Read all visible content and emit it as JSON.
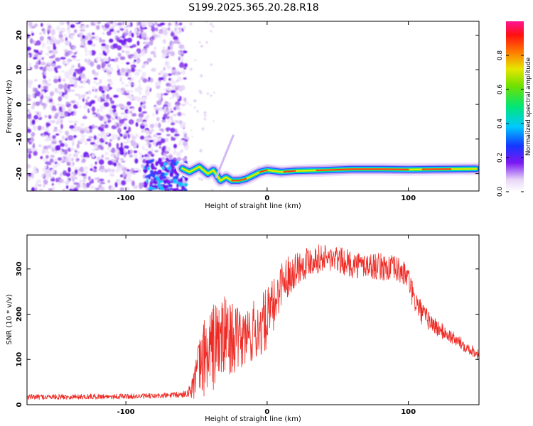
{
  "title": "S199.2025.365.20.28.R18",
  "chart_data": [
    {
      "type": "heatmap",
      "title": "S199.2025.365.20.28.R18",
      "xlabel": "Height of straight line (km)",
      "ylabel": "Frequency (Hz)",
      "xlim": [
        -170,
        150
      ],
      "ylim": [
        -25,
        24
      ],
      "xticks": [
        -100,
        0,
        100
      ],
      "xtick_labels": [
        "-100",
        "0",
        "100"
      ],
      "yticks": [
        -20,
        -10,
        0,
        10,
        20
      ],
      "ytick_labels": [
        "-20",
        "-10",
        "0",
        "10",
        "20"
      ],
      "noise_region_x": [
        -170,
        -57
      ],
      "signal_track": {
        "x": [
          -60,
          -55,
          -48,
          -42,
          -38,
          -33,
          -29,
          -25,
          -20,
          -15,
          -10,
          -5,
          0,
          10,
          20,
          40,
          60,
          80,
          100,
          120,
          148
        ],
        "y": [
          -18.5,
          -19.5,
          -18,
          -20,
          -19,
          -22,
          -21,
          -22,
          -22,
          -21.5,
          -20.5,
          -19.5,
          -19,
          -19.5,
          -19.2,
          -19,
          -18.7,
          -18.7,
          -18.8,
          -18.7,
          -18.6
        ]
      },
      "colorbar": {
        "label": "Normalized spectral amplitude",
        "range": [
          0,
          1
        ],
        "ticks": [
          0.0,
          0.2,
          0.4,
          0.6,
          0.8
        ],
        "tick_labels": [
          "0.0",
          "0.2",
          "0.4",
          "0.6",
          "0.8"
        ]
      }
    },
    {
      "type": "line",
      "xlabel": "Height of straight line (km)",
      "ylabel": "SNR (10 * v/v)",
      "xlim": [
        -170,
        150
      ],
      "ylim": [
        0,
        375
      ],
      "xticks": [
        -100,
        0,
        100
      ],
      "xtick_labels": [
        "-100",
        "0",
        "100"
      ],
      "yticks": [
        0,
        100,
        200,
        300
      ],
      "ytick_labels": [
        "0",
        "100",
        "200",
        "300"
      ],
      "color": "#ee2a24",
      "envelope": {
        "x": [
          -170,
          -120,
          -80,
          -60,
          -55,
          -52,
          -48,
          -44,
          -40,
          -35,
          -30,
          -25,
          -20,
          -15,
          -10,
          -5,
          0,
          5,
          10,
          20,
          30,
          40,
          50,
          60,
          70,
          80,
          90,
          95,
          100,
          103,
          110,
          120,
          130,
          140,
          150
        ],
        "mean": [
          17,
          18,
          19,
          22,
          30,
          50,
          80,
          110,
          120,
          140,
          150,
          150,
          140,
          150,
          160,
          170,
          190,
          220,
          270,
          300,
          320,
          325,
          320,
          310,
          308,
          305,
          300,
          295,
          280,
          240,
          200,
          170,
          150,
          130,
          110
        ],
        "amp": [
          6,
          6,
          6,
          7,
          12,
          40,
          70,
          90,
          100,
          100,
          90,
          80,
          70,
          70,
          70,
          70,
          70,
          60,
          50,
          40,
          35,
          30,
          30,
          30,
          30,
          30,
          30,
          30,
          25,
          30,
          25,
          20,
          15,
          14,
          12
        ]
      }
    }
  ]
}
